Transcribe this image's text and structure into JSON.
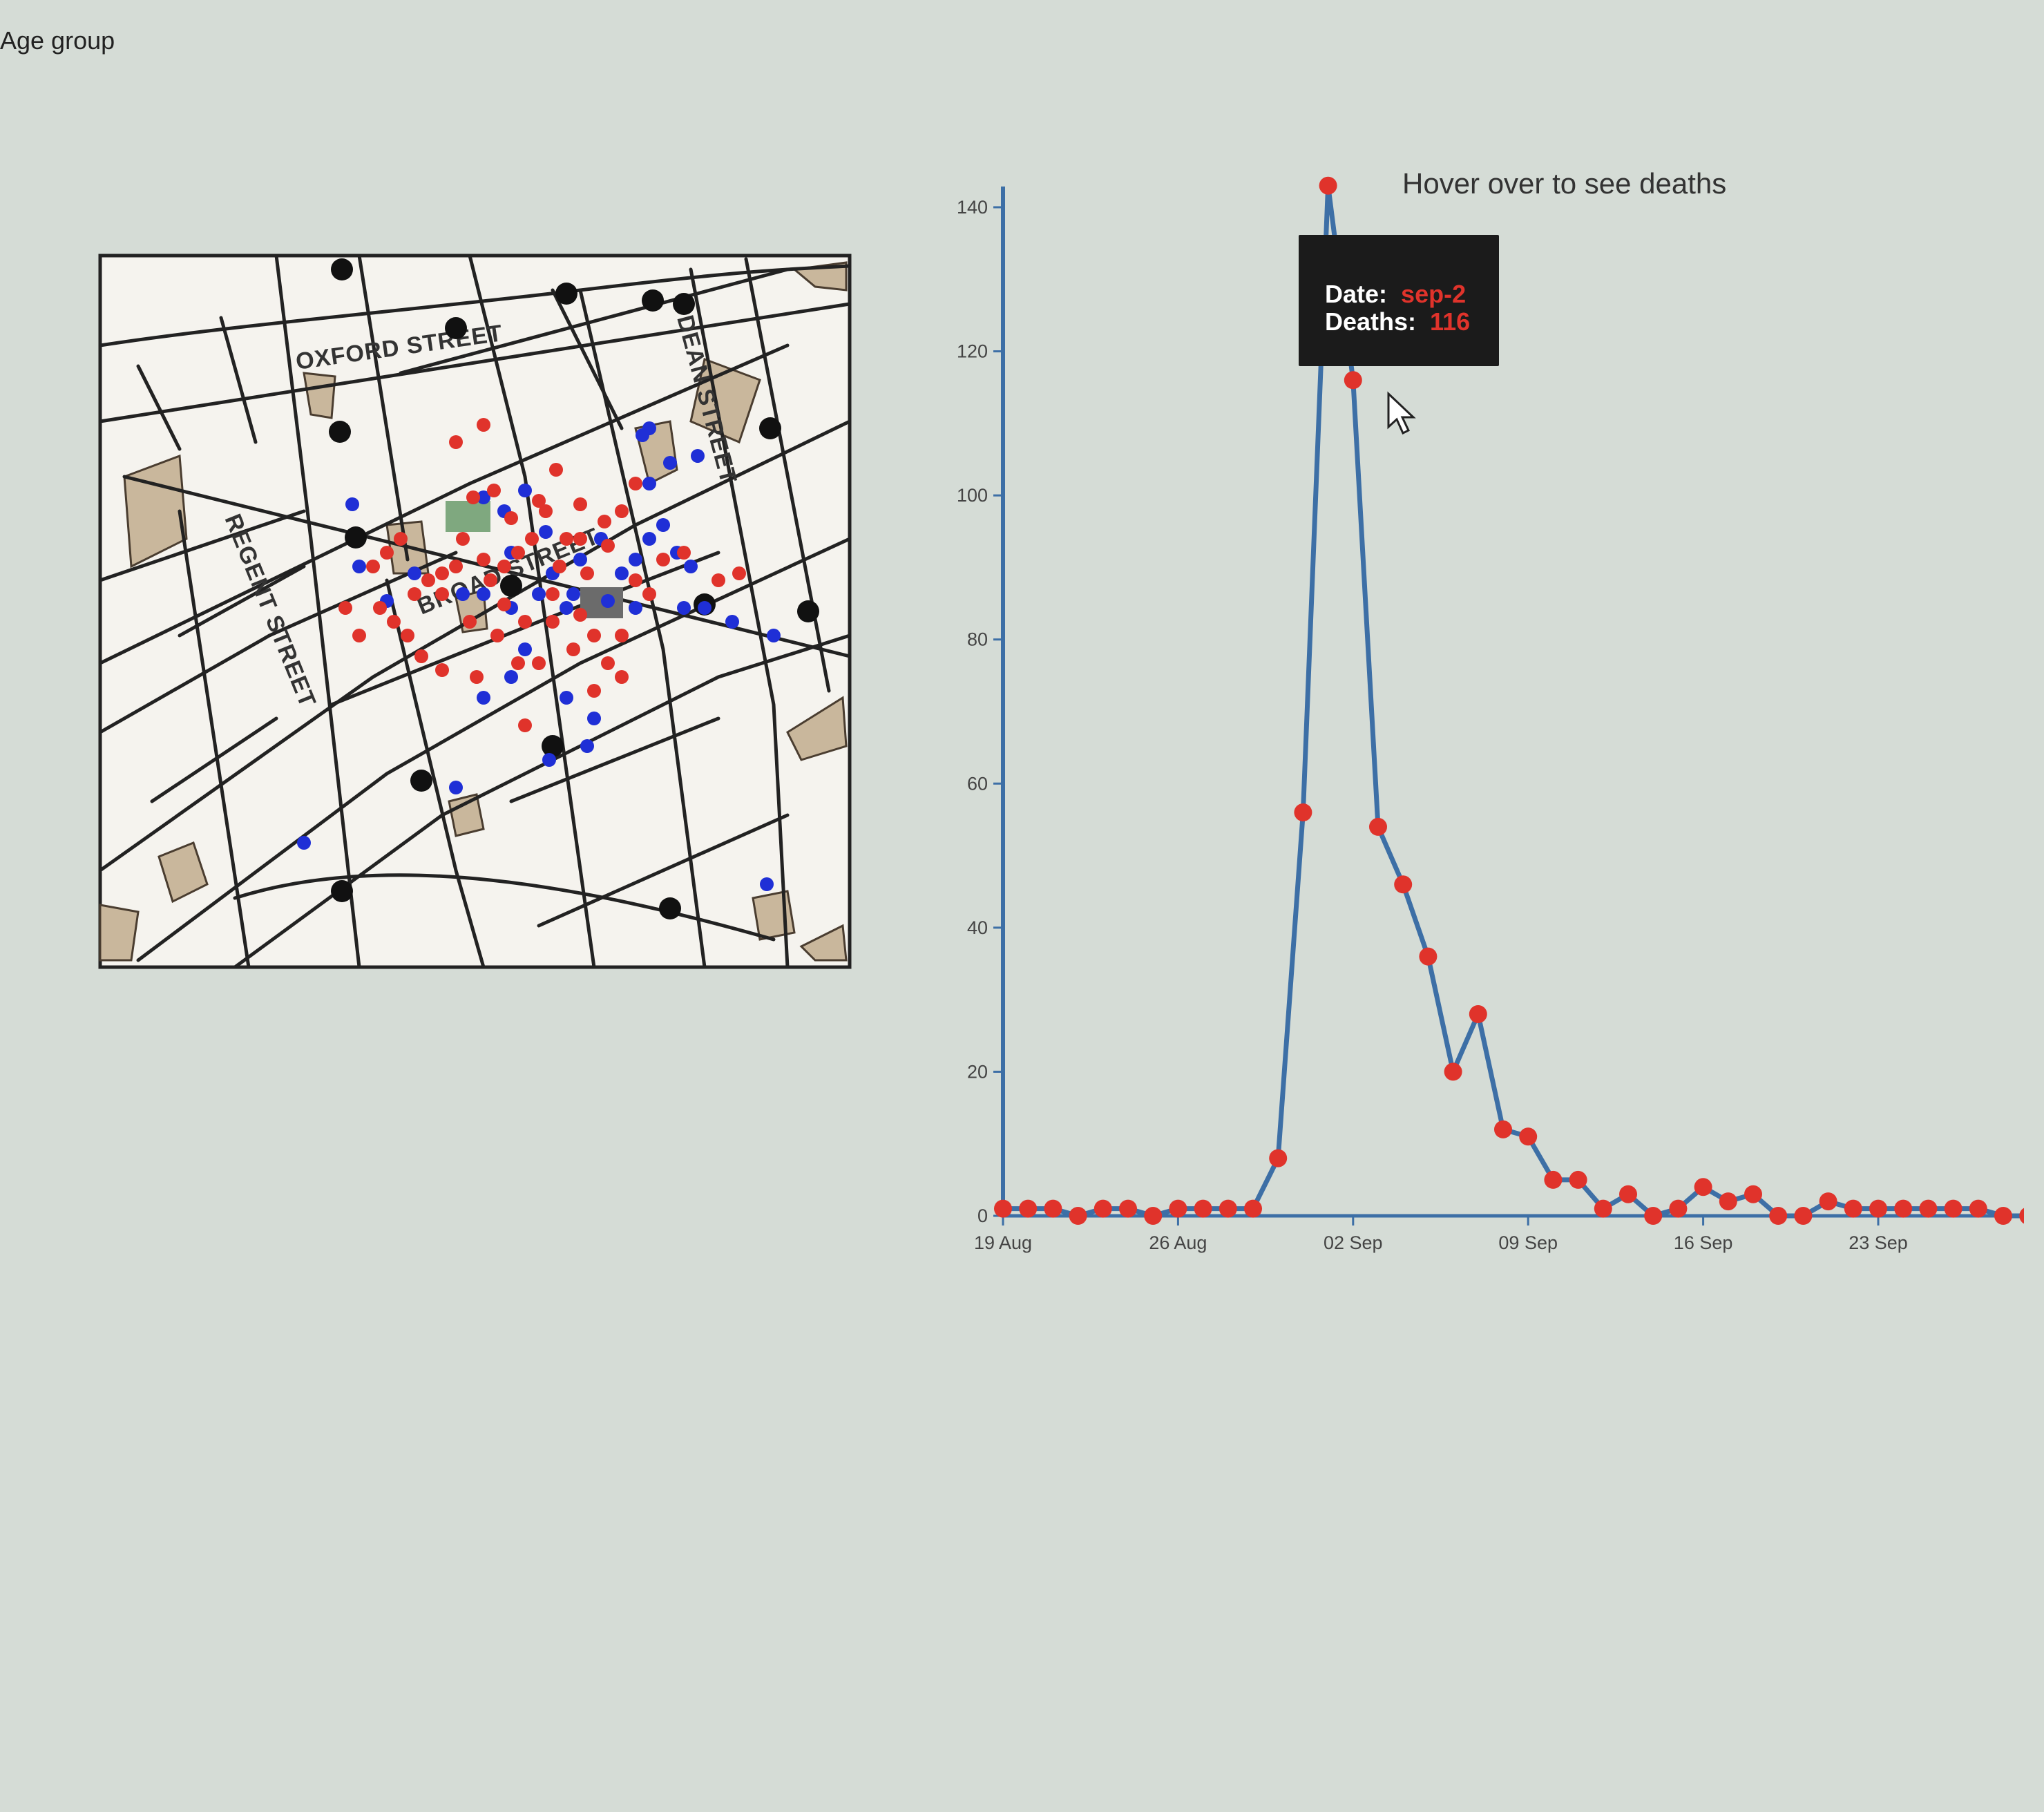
{
  "filter": {
    "age_group_label": "Age group"
  },
  "map": {
    "street_labels": {
      "oxford": "OXFORD STREET",
      "dean": "DEAN STREET",
      "regent": "REGENT STREET",
      "broad": "BROAD STREET"
    },
    "colors": {
      "female_deaths": "#e0332b",
      "male_deaths": "#1f2fd6",
      "pumps": "#111111",
      "workhouse": "#7fa87f",
      "brewery": "#6b6b6b",
      "buildings": "#c9b79c"
    }
  },
  "chart": {
    "hint": "Hover over to see deaths",
    "tooltip": {
      "date_label": "Date:",
      "date_value": "sep-2",
      "deaths_label": "Deaths:",
      "deaths_value": "116"
    },
    "line_color": "#3d6fa6",
    "point_color": "#e0332b"
  },
  "chart_data": {
    "type": "line",
    "title": "",
    "xlabel": "",
    "ylabel": "",
    "ylim": [
      0,
      140
    ],
    "yticks": [
      0,
      20,
      40,
      60,
      80,
      100,
      120,
      140
    ],
    "x_tick_labels": [
      "19 Aug",
      "26 Aug",
      "02 Sep",
      "09 Sep",
      "16 Sep",
      "23 Sep"
    ],
    "x_range": [
      "19 Aug",
      "29 Sep"
    ],
    "series": [
      {
        "values": [
          {
            "x": "19 Aug",
            "y": 1
          },
          {
            "x": "20 Aug",
            "y": 1
          },
          {
            "x": "21 Aug",
            "y": 1
          },
          {
            "x": "22 Aug",
            "y": 0
          },
          {
            "x": "23 Aug",
            "y": 1
          },
          {
            "x": "24 Aug",
            "y": 1
          },
          {
            "x": "25 Aug",
            "y": 0
          },
          {
            "x": "26 Aug",
            "y": 1
          },
          {
            "x": "27 Aug",
            "y": 1
          },
          {
            "x": "28 Aug",
            "y": 1
          },
          {
            "x": "29 Aug",
            "y": 1
          },
          {
            "x": "30 Aug",
            "y": 8
          },
          {
            "x": "31 Aug",
            "y": 56
          },
          {
            "x": "01 Sep",
            "y": 143
          },
          {
            "x": "02 Sep",
            "y": 116
          },
          {
            "x": "03 Sep",
            "y": 54
          },
          {
            "x": "04 Sep",
            "y": 46
          },
          {
            "x": "05 Sep",
            "y": 36
          },
          {
            "x": "06 Sep",
            "y": 20
          },
          {
            "x": "07 Sep",
            "y": 28
          },
          {
            "x": "08 Sep",
            "y": 12
          },
          {
            "x": "09 Sep",
            "y": 11
          },
          {
            "x": "10 Sep",
            "y": 5
          },
          {
            "x": "11 Sep",
            "y": 5
          },
          {
            "x": "12 Sep",
            "y": 1
          },
          {
            "x": "13 Sep",
            "y": 3
          },
          {
            "x": "14 Sep",
            "y": 0
          },
          {
            "x": "15 Sep",
            "y": 1
          },
          {
            "x": "16 Sep",
            "y": 4
          },
          {
            "x": "17 Sep",
            "y": 2
          },
          {
            "x": "18 Sep",
            "y": 3
          },
          {
            "x": "19 Sep",
            "y": 0
          },
          {
            "x": "20 Sep",
            "y": 0
          },
          {
            "x": "21 Sep",
            "y": 2
          },
          {
            "x": "22 Sep",
            "y": 1
          },
          {
            "x": "23 Sep",
            "y": 1
          },
          {
            "x": "24 Sep",
            "y": 1
          },
          {
            "x": "25 Sep",
            "y": 1
          },
          {
            "x": "26 Sep",
            "y": 1
          },
          {
            "x": "27 Sep",
            "y": 1
          },
          {
            "x": "28 Sep",
            "y": 0
          },
          {
            "x": "29 Sep",
            "y": 0
          }
        ]
      }
    ]
  }
}
